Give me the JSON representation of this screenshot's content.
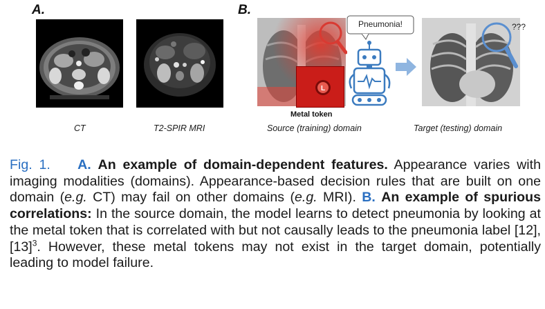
{
  "figure": {
    "panel_a": {
      "letter": "A.",
      "images": [
        {
          "label": "CT"
        },
        {
          "label": "T2-SPIR MRI"
        }
      ]
    },
    "panel_b": {
      "letter": "B.",
      "speech_bubble": "Pneumonia!",
      "question": "???",
      "metal_token_label": "Metal token",
      "source_label": "Source (training) domain",
      "target_label": "Target (testing) domain",
      "colors": {
        "token_red": "#d9221f",
        "robot_blue": "#3b7bbf",
        "arrow_blue": "#8fb5e0"
      }
    }
  },
  "caption": {
    "fig_num": "Fig. 1.",
    "a_label": "A.",
    "a_title": "An example of domain-dependent features.",
    "a_text": " Appearance varies with imaging modalities (domains). Appearance-based decision rules that are built on one domain (",
    "eg1": "e.g.",
    "a_text2": " CT) may fail on other domains (",
    "eg2": "e.g.",
    "a_text3": " MRI). ",
    "b_label": "B.",
    "b_title": "An example of spurious correlations:",
    "b_text": " In the source domain, the model learns to detect pneumonia by looking at the metal token that is correlated with but not causally leads to the pneumonia label [12], [13]",
    "sup": "3",
    "b_text2": ". However, these metal tokens may not exist in the target domain, potentially leading to model failure.",
    "colors": {
      "accent": "#2a6fc1"
    }
  }
}
